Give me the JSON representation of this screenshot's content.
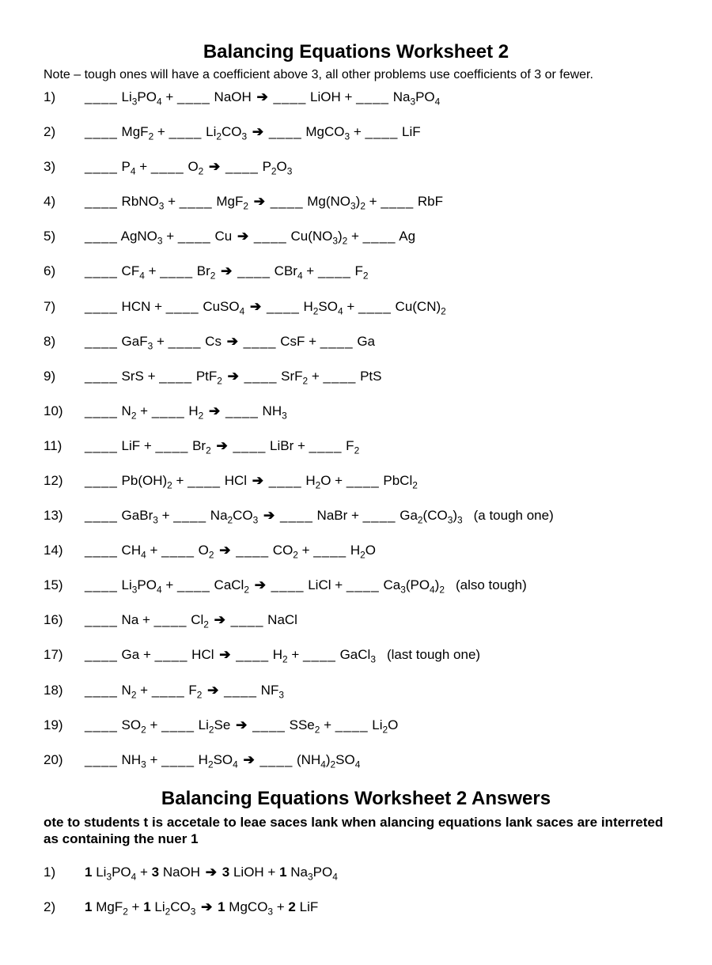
{
  "title": "Balancing Equations Worksheet 2",
  "note": "Note – tough ones will have a coefficient above 3, all other problems use coefficients of 3 or fewer.",
  "problems": [
    {
      "n": "1)",
      "terms": [
        "Li<sub>3</sub>PO<sub>4</sub>",
        "NaOH",
        "LiOH",
        "Na<sub>3</sub>PO<sub>4</sub>"
      ],
      "hint": ""
    },
    {
      "n": "2)",
      "terms": [
        "MgF<sub>2</sub>",
        "Li<sub>2</sub>CO<sub>3</sub>",
        "MgCO<sub>3</sub>",
        "LiF"
      ],
      "hint": ""
    },
    {
      "n": "3)",
      "terms": [
        "P<sub>4</sub>",
        "O<sub>2</sub>",
        "P<sub>2</sub>O<sub>3</sub>"
      ],
      "hint": ""
    },
    {
      "n": "4)",
      "terms": [
        "RbNO<sub>3</sub>",
        "MgF<sub>2</sub>",
        "Mg(NO<sub>3</sub>)<sub>2</sub>",
        "RbF"
      ],
      "hint": ""
    },
    {
      "n": "5)",
      "terms": [
        "AgNO<sub>3</sub>",
        "Cu",
        "Cu(NO<sub>3</sub>)<sub>2</sub>",
        "Ag"
      ],
      "hint": ""
    },
    {
      "n": "6)",
      "terms": [
        "CF<sub>4</sub>",
        "Br<sub>2</sub>",
        "CBr<sub>4</sub>",
        "F<sub>2</sub>"
      ],
      "hint": ""
    },
    {
      "n": "7)",
      "terms": [
        "HCN",
        "CuSO<sub>4</sub>",
        "H<sub>2</sub>SO<sub>4</sub>",
        "Cu(CN)<sub>2</sub>"
      ],
      "hint": ""
    },
    {
      "n": "8)",
      "terms": [
        "GaF<sub>3</sub>",
        "Cs",
        "CsF",
        "Ga"
      ],
      "hint": ""
    },
    {
      "n": "9)",
      "terms": [
        "SrS",
        "PtF<sub>2</sub>",
        "SrF<sub>2</sub>",
        "PtS"
      ],
      "hint": ""
    },
    {
      "n": "10)",
      "terms": [
        "N<sub>2</sub>",
        "H<sub>2</sub>",
        "NH<sub>3</sub>"
      ],
      "hint": ""
    },
    {
      "n": "11)",
      "terms": [
        "LiF",
        "Br<sub>2</sub>",
        "LiBr",
        "F<sub>2</sub>"
      ],
      "hint": ""
    },
    {
      "n": "12)",
      "terms": [
        "Pb(OH)<sub>2</sub>",
        "HCl",
        "H<sub>2</sub>O",
        "PbCl<sub>2</sub>"
      ],
      "hint": ""
    },
    {
      "n": "13)",
      "terms": [
        "GaBr<sub>3</sub>",
        "Na<sub>2</sub>CO<sub>3</sub>",
        "NaBr",
        "Ga<sub>2</sub>(CO<sub>3</sub>)<sub>3</sub>"
      ],
      "hint": "(a tough one)"
    },
    {
      "n": "14)",
      "terms": [
        "CH<sub>4</sub>",
        "O<sub>2</sub>",
        "CO<sub>2</sub>",
        "H<sub>2</sub>O"
      ],
      "hint": ""
    },
    {
      "n": "15)",
      "terms": [
        "Li<sub>3</sub>PO<sub>4</sub>",
        "CaCl<sub>2</sub>",
        "LiCl",
        "Ca<sub>3</sub>(PO<sub>4</sub>)<sub>2</sub>"
      ],
      "hint": "(also tough)"
    },
    {
      "n": "16)",
      "terms": [
        "Na",
        "Cl<sub>2</sub>",
        "NaCl"
      ],
      "hint": ""
    },
    {
      "n": "17)",
      "terms": [
        "Ga",
        "HCl",
        "H<sub>2</sub>",
        "GaCl<sub>3</sub>"
      ],
      "hint": "(last tough one)"
    },
    {
      "n": "18)",
      "terms": [
        "N<sub>2</sub>",
        "F<sub>2</sub>",
        "NF<sub>3</sub>"
      ],
      "hint": ""
    },
    {
      "n": "19)",
      "terms": [
        "SO<sub>2</sub>",
        "Li<sub>2</sub>Se",
        "SSe<sub>2</sub>",
        "Li<sub>2</sub>O"
      ],
      "hint": ""
    },
    {
      "n": "20)",
      "terms": [
        "NH<sub>3</sub>",
        "H<sub>2</sub>SO<sub>4</sub>",
        "(NH<sub>4</sub>)<sub>2</sub>SO<sub>4</sub>"
      ],
      "hint": ""
    }
  ],
  "answers_title": "Balancing Equations Worksheet 2  Answers",
  "answers_note": "ote to students  t is accetale to leae saces lank when alancing equations  lank saces are interreted as containing the nuer 1",
  "answers": [
    {
      "n": "1)",
      "coeffs": [
        "1",
        "3",
        "3",
        "1"
      ],
      "terms": [
        "Li<sub>3</sub>PO<sub>4</sub>",
        "NaOH",
        "LiOH",
        "Na<sub>3</sub>PO<sub>4</sub>"
      ]
    },
    {
      "n": "2)",
      "coeffs": [
        "1",
        "1",
        "1",
        "2"
      ],
      "terms": [
        "MgF<sub>2</sub>",
        "Li<sub>2</sub>CO<sub>3</sub>",
        "MgCO<sub>3</sub>",
        "LiF"
      ]
    }
  ]
}
